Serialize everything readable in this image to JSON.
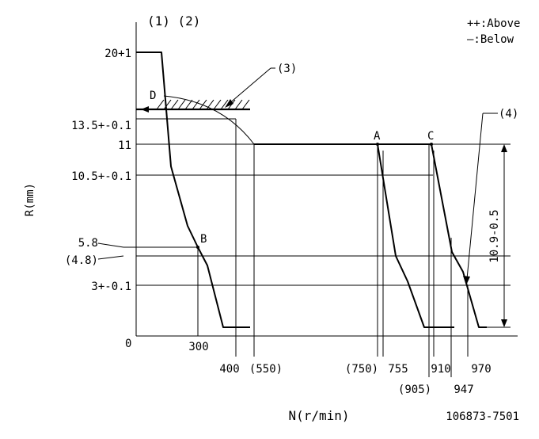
{
  "header": {
    "markers": "(1) (2)",
    "legend_above": "++:Above",
    "legend_below": "—:Below"
  },
  "axes": {
    "y_title": "R(mm)",
    "x_title": "N(r/min)",
    "origin": "0"
  },
  "y_labels": {
    "y20": "20+1",
    "y13_5": "13.5+-0.1",
    "y11": "11",
    "y10_5": "10.5+-0.1",
    "y5_8": "5.8",
    "y4_8": "(4.8)",
    "y3": "3+-0.1"
  },
  "x_labels": {
    "x300": "300",
    "x400": "400",
    "x550": "(550)",
    "x750": "(750)",
    "x755": "755",
    "x905": "(905)",
    "x910": "910",
    "x947": "947",
    "x970": "970"
  },
  "points": {
    "A": "A",
    "B": "B",
    "C": "C",
    "D": "D"
  },
  "callouts": {
    "c3": "(3)",
    "c4": "(4)"
  },
  "dimension": "10.9-0.5",
  "drawing_number": "106873-7501"
}
